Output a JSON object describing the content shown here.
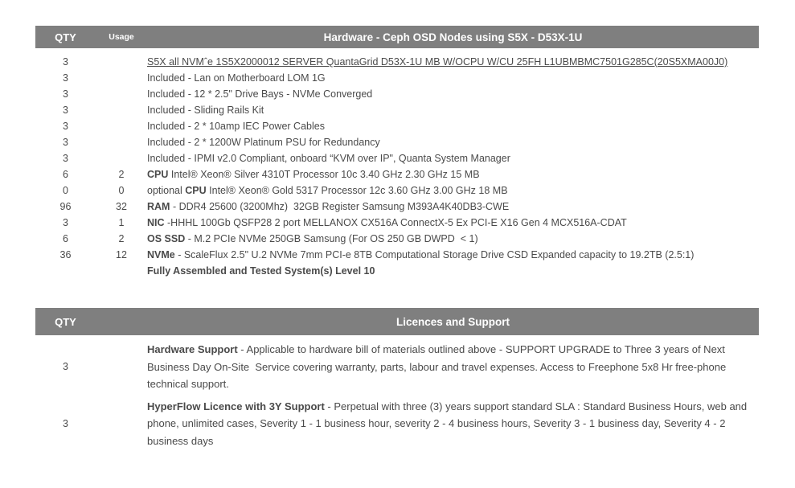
{
  "colors": {
    "header_bg": "#7f7f7f",
    "header_text": "#ffffff",
    "body_text": "#4a4a4a"
  },
  "hardware_table": {
    "qty_header": "QTY",
    "usage_header": "Usage",
    "title": "Hardware - Ceph OSD Nodes using S5X - D53X-1U",
    "rows": [
      {
        "qty": "3",
        "usage": "",
        "pre": "",
        "bold": "",
        "text": "S5X all NVMˆe 1S5X2000012 SERVER QuantaGrid D53X-1U MB W/OCPU W/CU 25FH L1UBMBMC7501G285C(20S5XMA00J0)",
        "underline": true
      },
      {
        "qty": "3",
        "usage": "",
        "pre": "",
        "bold": "",
        "text": "Included - Lan on Motherboard LOM 1G"
      },
      {
        "qty": "3",
        "usage": "",
        "pre": "",
        "bold": "",
        "text": "Included - 12 * 2.5\" Drive Bays - NVMe Converged"
      },
      {
        "qty": "3",
        "usage": "",
        "pre": "",
        "bold": "",
        "text": "Included - Sliding Rails Kit"
      },
      {
        "qty": "3",
        "usage": "",
        "pre": "",
        "bold": "",
        "text": "Included - 2 * 10amp IEC Power Cables"
      },
      {
        "qty": "3",
        "usage": "",
        "pre": "",
        "bold": "",
        "text": "Included - 2 * 1200W Platinum PSU for Redundancy"
      },
      {
        "qty": "3",
        "usage": "",
        "pre": "",
        "bold": "",
        "text": "Included - IPMI v2.0 Compliant, onboard “KVM over IP\", Quanta System Manager"
      },
      {
        "qty": "6",
        "usage": "2",
        "pre": "",
        "bold": "CPU",
        "text": " Intel® Xeon® Silver 4310T Processor 10c 3.40 GHz 2.30 GHz 15 MB"
      },
      {
        "qty": "0",
        "usage": "0",
        "pre": "optional ",
        "bold": "CPU",
        "text": " Intel® Xeon® Gold 5317 Processor 12c 3.60 GHz 3.00 GHz 18 MB"
      },
      {
        "qty": "96",
        "usage": "32",
        "pre": "",
        "bold": "RAM",
        "text": " - DDR4 25600 (3200Mhz)  32GB Register Samsung M393A4K40DB3-CWE"
      },
      {
        "qty": "3",
        "usage": "1",
        "pre": "",
        "bold": "NIC",
        "text": " -HHHL 100Gb QSFP28 2 port MELLANOX CX516A ConnectX-5 Ex PCI-E X16 Gen 4 MCX516A-CDAT"
      },
      {
        "qty": "6",
        "usage": "2",
        "pre": "",
        "bold": "OS SSD",
        "text": " - M.2 PCIe NVMe 250GB Samsung (For OS 250 GB DWPD  < 1)"
      },
      {
        "qty": "36",
        "usage": "12",
        "pre": "",
        "bold": "NVMe",
        "text": " - ScaleFlux 2.5\" U.2 NVMe 7mm PCI-e 8TB Computational Storage Drive CSD Expanded capacity to 19.2TB (2.5:1)"
      },
      {
        "qty": "",
        "usage": "",
        "pre": "",
        "bold": "Fully Assembled and Tested System(s) Level 10",
        "text": ""
      }
    ]
  },
  "licences_table": {
    "qty_header": "QTY",
    "title": "Licences and Support",
    "rows": [
      {
        "qty": "3",
        "usage": "",
        "pre": "",
        "bold": "Hardware Support",
        "text": " - Applicable to hardware bill of materials outlined above - SUPPORT UPGRADE to Three 3 years of Next Business Day On-Site  Service covering warranty, parts, labour and travel expenses. Access to Freephone 5x8 Hr free-phone technical support."
      },
      {
        "qty": "3",
        "usage": "",
        "pre": "",
        "bold": "HyperFlow Licence with 3Y Support",
        "text": " - Perpetual with three (3) years support standard SLA : Standard Business Hours, web and phone, unlimited cases, Severity 1 - 1 business hour, severity 2 - 4 business hours, Severity 3 - 1 business day, Severity 4 - 2 business days"
      }
    ]
  }
}
